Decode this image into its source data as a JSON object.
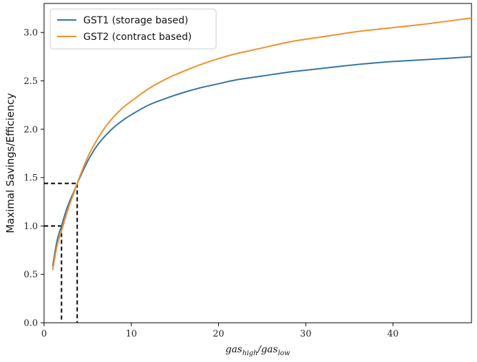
{
  "chart_data": {
    "type": "line",
    "title": "",
    "ylabel": "Maximal Savings/Efficiency",
    "xlabel": {
      "base1": "gas",
      "sub1": "high",
      "sep": "/",
      "base2": "gas",
      "sub2": "low"
    },
    "xlim": [
      0,
      49
    ],
    "ylim": [
      0,
      3.3
    ],
    "xticks": [
      0,
      10,
      20,
      30,
      40
    ],
    "xtick_labels": [
      "0",
      "10",
      "20",
      "30",
      "40"
    ],
    "yticks": [
      0,
      0.5,
      1.0,
      1.5,
      2.0,
      2.5,
      3.0
    ],
    "ytick_labels": [
      "0.0",
      "0.5",
      "1.0",
      "1.5",
      "2.0",
      "2.5",
      "3.0"
    ],
    "grid": false,
    "legend_position": "upper-left",
    "series": [
      {
        "name": "GST1 (storage based)",
        "color": "#3274a1",
        "x": [
          1,
          1.5,
          2,
          2.5,
          3,
          3.5,
          3.8,
          4,
          5,
          6,
          7,
          8,
          9,
          10,
          12,
          14,
          16,
          18,
          20,
          22,
          25,
          28,
          30,
          33,
          36,
          40,
          44,
          49
        ],
        "y": [
          0.59,
          0.85,
          1.0,
          1.15,
          1.27,
          1.37,
          1.44,
          1.48,
          1.67,
          1.82,
          1.93,
          2.02,
          2.09,
          2.15,
          2.25,
          2.32,
          2.38,
          2.43,
          2.47,
          2.51,
          2.55,
          2.59,
          2.61,
          2.64,
          2.67,
          2.7,
          2.72,
          2.75
        ]
      },
      {
        "name": "GST2 (contract based)",
        "color": "#f28e2b",
        "x": [
          1,
          1.5,
          2,
          2.5,
          3,
          3.5,
          3.8,
          4,
          5,
          6,
          7,
          8,
          9,
          10,
          12,
          14,
          16,
          18,
          20,
          22,
          25,
          28,
          30,
          33,
          36,
          40,
          44,
          49
        ],
        "y": [
          0.55,
          0.8,
          0.95,
          1.1,
          1.24,
          1.36,
          1.44,
          1.49,
          1.71,
          1.88,
          2.02,
          2.13,
          2.22,
          2.29,
          2.42,
          2.52,
          2.6,
          2.67,
          2.73,
          2.78,
          2.84,
          2.9,
          2.93,
          2.97,
          3.01,
          3.05,
          3.09,
          3.15
        ]
      }
    ],
    "reference_lines": [
      {
        "x": 2.0,
        "y": 1.0,
        "color": "#000000"
      },
      {
        "x": 3.8,
        "y": 1.44,
        "color": "#000000"
      }
    ]
  }
}
